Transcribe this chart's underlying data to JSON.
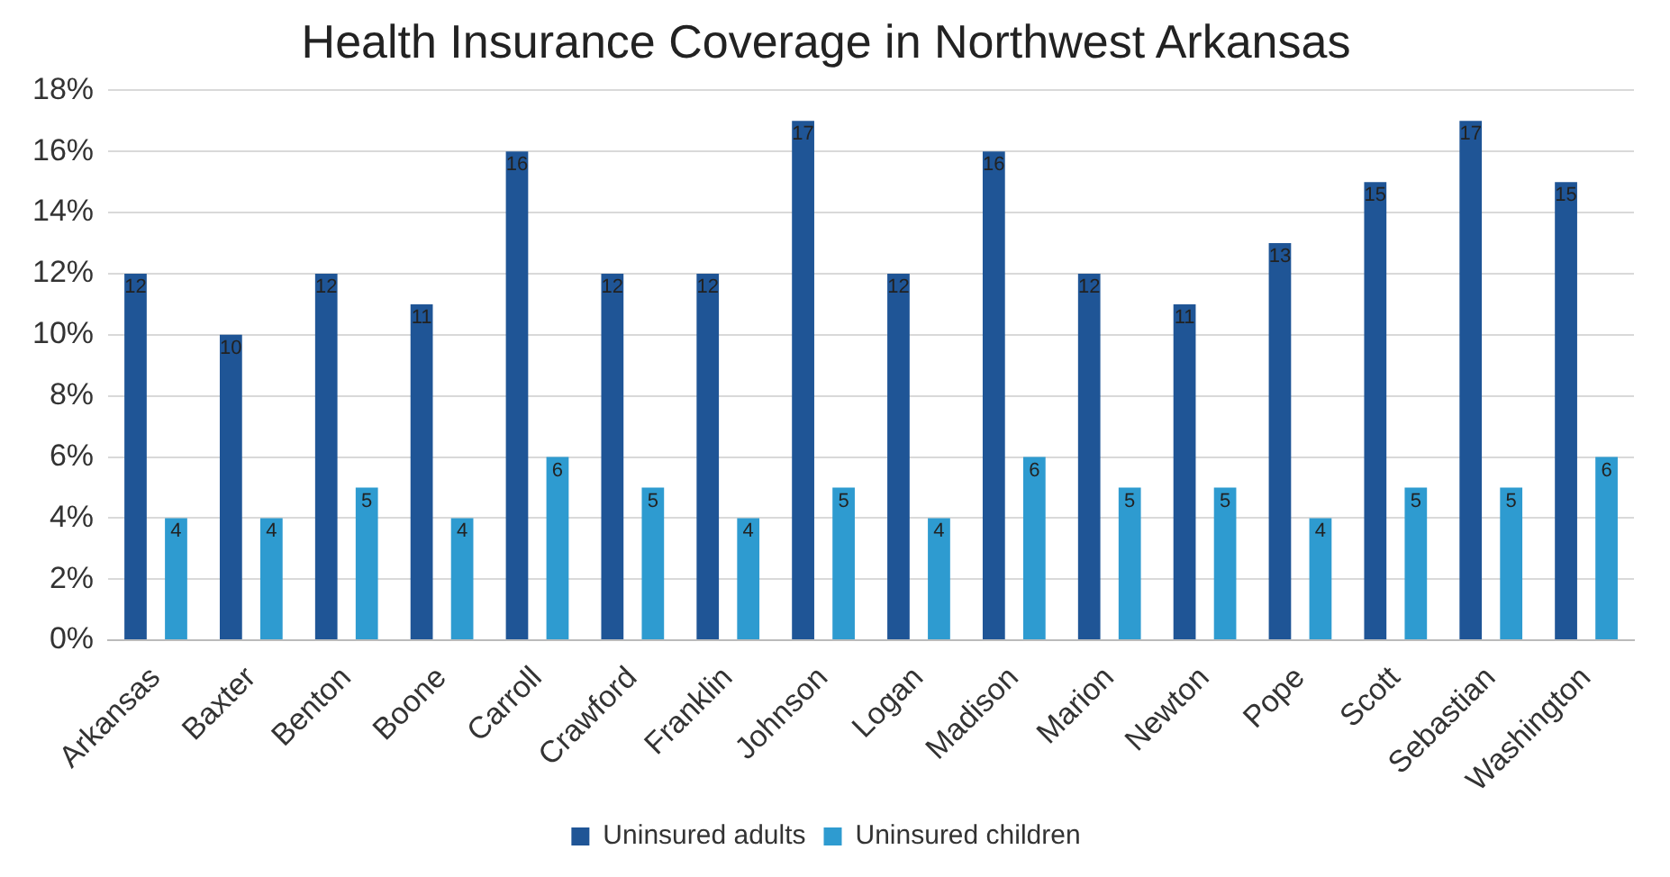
{
  "chart_data": {
    "type": "bar",
    "title": "Health Insurance Coverage in Northwest Arkansas",
    "categories": [
      "Arkansas",
      "Baxter",
      "Benton",
      "Boone",
      "Carroll",
      "Crawford",
      "Franklin",
      "Johnson",
      "Logan",
      "Madison",
      "Marion",
      "Newton",
      "Pope",
      "Scott",
      "Sebastian",
      "Washington"
    ],
    "series": [
      {
        "name": "Uninsured adults",
        "color": "#1f5596",
        "values": [
          12,
          10,
          12,
          11,
          16,
          12,
          12,
          17,
          12,
          16,
          12,
          11,
          13,
          15,
          17,
          15
        ]
      },
      {
        "name": "Uninsured children",
        "color": "#2e9bd0",
        "values": [
          4,
          4,
          5,
          4,
          6,
          5,
          4,
          5,
          4,
          6,
          5,
          5,
          4,
          5,
          5,
          6
        ]
      }
    ],
    "ylim": [
      0,
      18
    ],
    "yticks": [
      {
        "value": 0,
        "label": "0%"
      },
      {
        "value": 2,
        "label": "2%"
      },
      {
        "value": 4,
        "label": "4%"
      },
      {
        "value": 6,
        "label": "6%"
      },
      {
        "value": 8,
        "label": "8%"
      },
      {
        "value": 10,
        "label": "10%"
      },
      {
        "value": 12,
        "label": "12%"
      },
      {
        "value": 14,
        "label": "14%"
      },
      {
        "value": 16,
        "label": "16%"
      },
      {
        "value": 18,
        "label": "18%"
      }
    ],
    "grid": "y",
    "legend": "bottom",
    "data_labels": true
  }
}
